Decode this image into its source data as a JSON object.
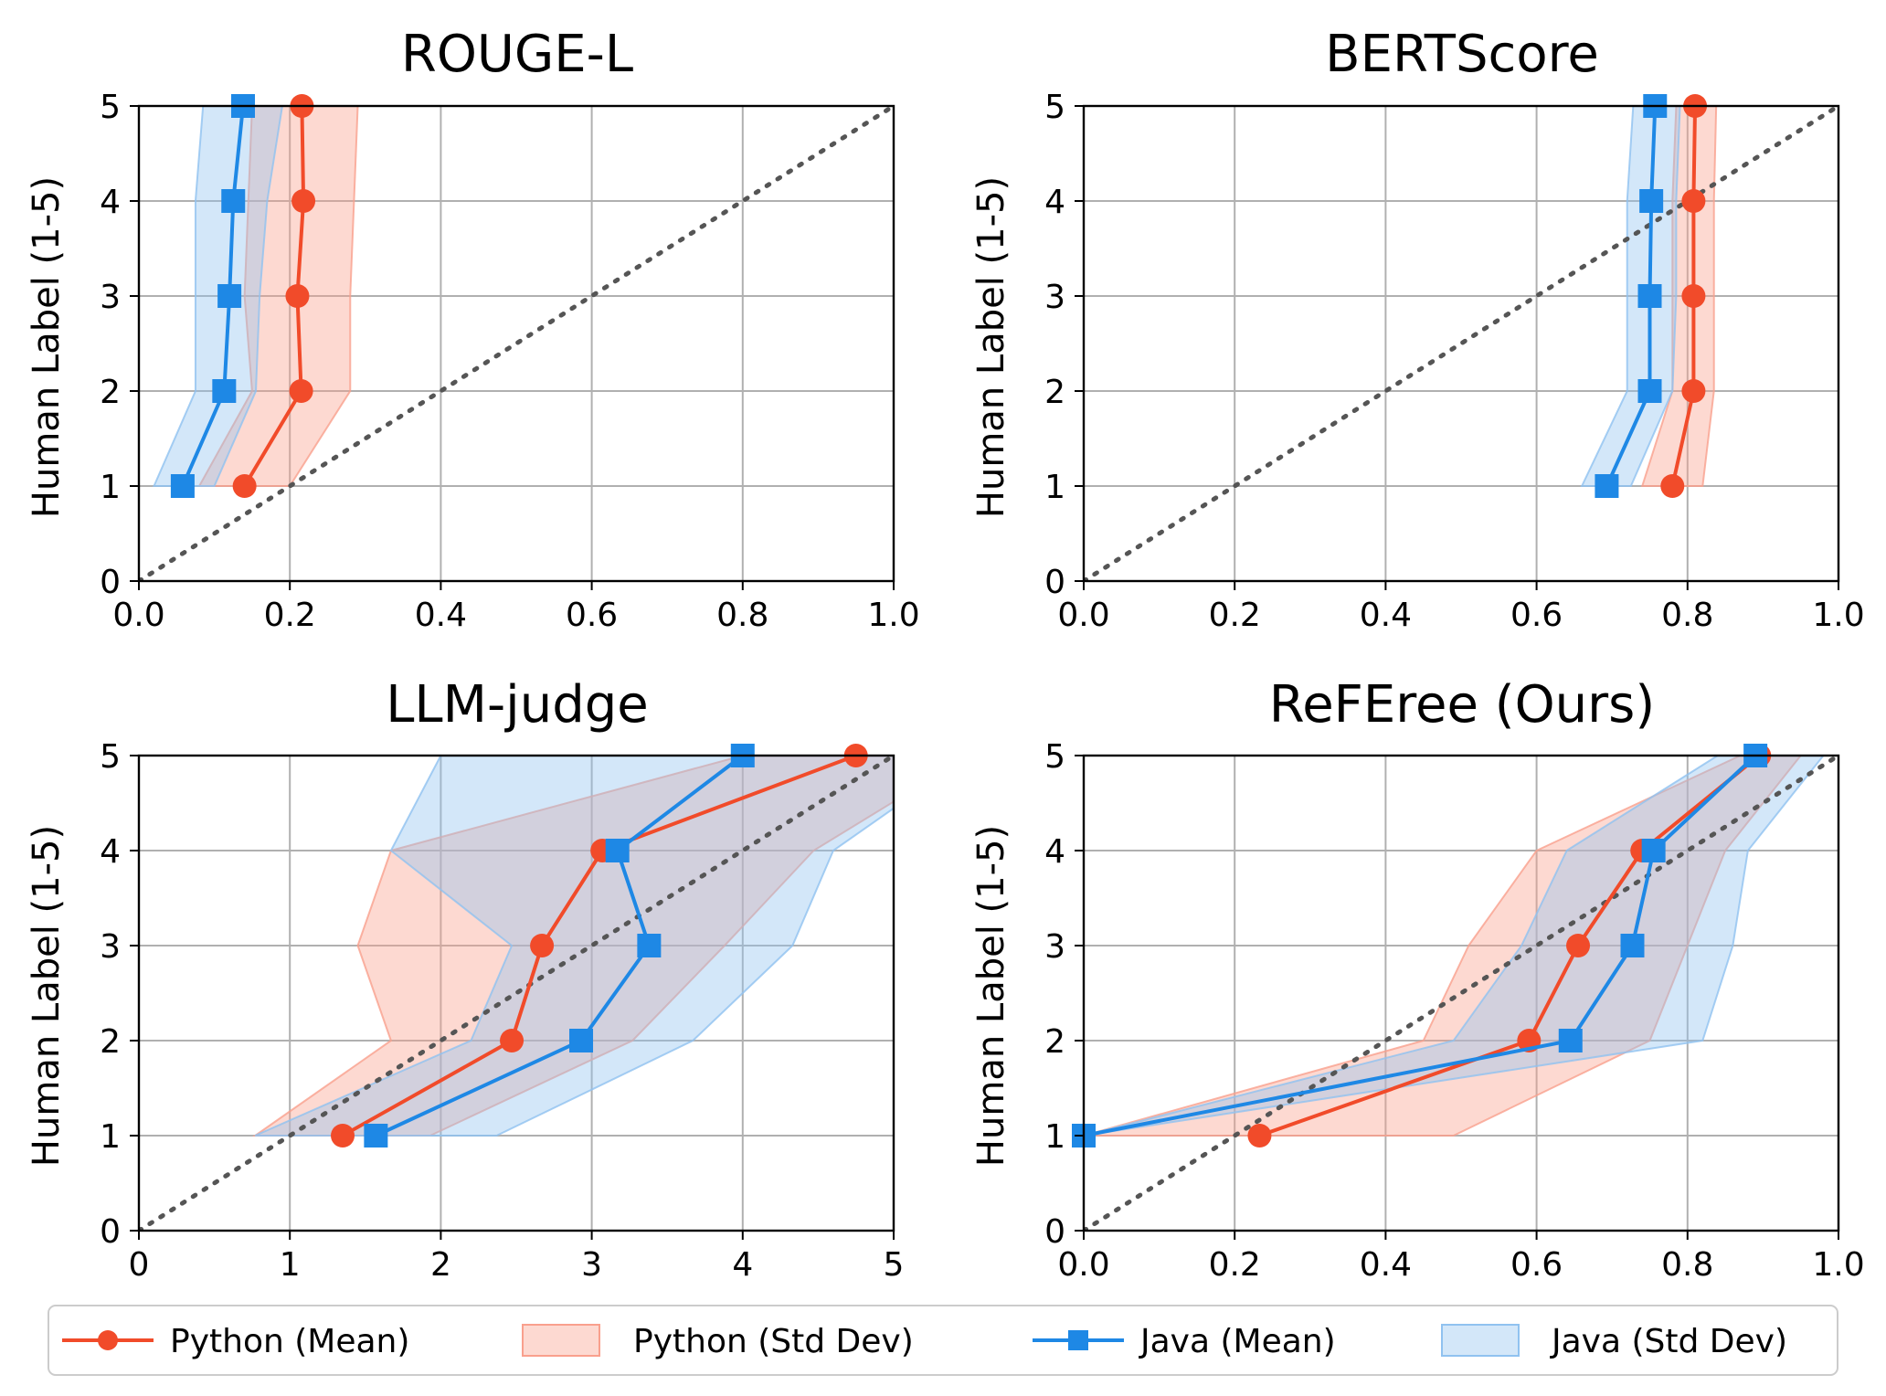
{
  "colors": {
    "python": "#f14b2a",
    "python_fill": "#f9a08d",
    "java": "#1e88e5",
    "java_fill": "#90c2f0",
    "grid": "#b0b0b0",
    "diagonal": "#555555"
  },
  "chart_data": [
    {
      "type": "line",
      "title": "ROUGE-L",
      "xlabel": "",
      "ylabel": "Human Label (1-5)",
      "xlim": [
        0.0,
        1.0
      ],
      "ylim": [
        0,
        5
      ],
      "xticks": [
        "0.0",
        "0.2",
        "0.4",
        "0.6",
        "0.8",
        "1.0"
      ],
      "xtick_values": [
        0.0,
        0.2,
        0.4,
        0.6,
        0.8,
        1.0
      ],
      "yticks": [
        "0",
        "1",
        "2",
        "3",
        "4",
        "5"
      ],
      "ytick_values": [
        0,
        1,
        2,
        3,
        4,
        5
      ],
      "grid": true,
      "diagonal": true,
      "y": [
        1,
        2,
        3,
        4,
        5
      ],
      "series": [
        {
          "name": "Python (Mean)",
          "marker": "circle",
          "x": [
            0.14,
            0.215,
            0.21,
            0.218,
            0.216
          ]
        },
        {
          "name": "Java (Mean)",
          "marker": "square",
          "x": [
            0.058,
            0.113,
            0.12,
            0.125,
            0.138
          ]
        }
      ],
      "bands": [
        {
          "name": "Python (Std Dev)",
          "low": [
            0.08,
            0.15,
            0.14,
            0.145,
            0.15
          ],
          "high": [
            0.2,
            0.28,
            0.28,
            0.285,
            0.29
          ]
        },
        {
          "name": "Java (Std Dev)",
          "low": [
            0.02,
            0.075,
            0.075,
            0.075,
            0.085
          ],
          "high": [
            0.1,
            0.155,
            0.16,
            0.17,
            0.19
          ]
        }
      ]
    },
    {
      "type": "line",
      "title": "BERTScore",
      "xlabel": "",
      "ylabel": "Human Label (1-5)",
      "xlim": [
        0.0,
        1.0
      ],
      "ylim": [
        0,
        5
      ],
      "xticks": [
        "0.0",
        "0.2",
        "0.4",
        "0.6",
        "0.8",
        "1.0"
      ],
      "xtick_values": [
        0.0,
        0.2,
        0.4,
        0.6,
        0.8,
        1.0
      ],
      "yticks": [
        "0",
        "1",
        "2",
        "3",
        "4",
        "5"
      ],
      "ytick_values": [
        0,
        1,
        2,
        3,
        4,
        5
      ],
      "grid": true,
      "diagonal": true,
      "y": [
        1,
        2,
        3,
        4,
        5
      ],
      "series": [
        {
          "name": "Python (Mean)",
          "marker": "circle",
          "x": [
            0.78,
            0.808,
            0.808,
            0.808,
            0.81
          ]
        },
        {
          "name": "Java (Mean)",
          "marker": "square",
          "x": [
            0.693,
            0.75,
            0.75,
            0.752,
            0.757
          ]
        }
      ],
      "bands": [
        {
          "name": "Python (Std Dev)",
          "low": [
            0.74,
            0.78,
            0.78,
            0.78,
            0.785
          ],
          "high": [
            0.82,
            0.835,
            0.835,
            0.835,
            0.838
          ]
        },
        {
          "name": "Java (Std Dev)",
          "low": [
            0.66,
            0.72,
            0.72,
            0.72,
            0.728
          ],
          "high": [
            0.725,
            0.78,
            0.785,
            0.785,
            0.79
          ]
        }
      ]
    },
    {
      "type": "line",
      "title": "LLM-judge",
      "xlabel": "",
      "ylabel": "Human Label (1-5)",
      "xlim": [
        0,
        5
      ],
      "ylim": [
        0,
        5
      ],
      "xticks": [
        "0",
        "1",
        "2",
        "3",
        "4",
        "5"
      ],
      "xtick_values": [
        0,
        1,
        2,
        3,
        4,
        5
      ],
      "yticks": [
        "0",
        "1",
        "2",
        "3",
        "4",
        "5"
      ],
      "ytick_values": [
        0,
        1,
        2,
        3,
        4,
        5
      ],
      "grid": true,
      "diagonal": true,
      "y": [
        1,
        2,
        3,
        4,
        5
      ],
      "series": [
        {
          "name": "Python (Mean)",
          "marker": "circle",
          "x": [
            1.35,
            2.47,
            2.67,
            3.07,
            4.75
          ]
        },
        {
          "name": "Java (Mean)",
          "marker": "square",
          "x": [
            1.57,
            2.93,
            3.38,
            3.17,
            4.0
          ]
        }
      ],
      "bands": [
        {
          "name": "Python (Std Dev)",
          "low": [
            0.77,
            1.67,
            1.45,
            1.67,
            4.0
          ],
          "high": [
            1.93,
            3.27,
            3.88,
            4.47,
            5.5
          ]
        },
        {
          "name": "Java (Std Dev)",
          "low": [
            0.77,
            2.2,
            2.47,
            1.67,
            2.0
          ],
          "high": [
            2.37,
            3.67,
            4.33,
            4.6,
            5.5
          ]
        }
      ]
    },
    {
      "type": "line",
      "title": "ReFEree (Ours)",
      "xlabel": "",
      "ylabel": "Human Label (1-5)",
      "xlim": [
        0.0,
        1.0
      ],
      "ylim": [
        0,
        5
      ],
      "xticks": [
        "0.0",
        "0.2",
        "0.4",
        "0.6",
        "0.8",
        "1.0"
      ],
      "xtick_values": [
        0.0,
        0.2,
        0.4,
        0.6,
        0.8,
        1.0
      ],
      "yticks": [
        "0",
        "1",
        "2",
        "3",
        "4",
        "5"
      ],
      "ytick_values": [
        0,
        1,
        2,
        3,
        4,
        5
      ],
      "grid": true,
      "diagonal": true,
      "y": [
        1,
        2,
        3,
        4,
        5
      ],
      "series": [
        {
          "name": "Python (Mean)",
          "marker": "circle",
          "x": [
            0.233,
            0.59,
            0.655,
            0.74,
            0.895
          ]
        },
        {
          "name": "Java (Mean)",
          "marker": "square",
          "x": [
            0.0,
            0.645,
            0.727,
            0.755,
            0.89
          ]
        }
      ],
      "bands": [
        {
          "name": "Python (Std Dev)",
          "low": [
            0.0,
            0.45,
            0.51,
            0.6,
            0.87
          ],
          "high": [
            0.49,
            0.75,
            0.8,
            0.85,
            0.95
          ]
        },
        {
          "name": "Java (Std Dev)",
          "low": [
            0.0,
            0.49,
            0.58,
            0.64,
            0.84
          ],
          "high": [
            0.0,
            0.82,
            0.86,
            0.88,
            0.98
          ]
        }
      ]
    }
  ],
  "legend": {
    "placement": "bottom",
    "items": [
      {
        "label": "Python (Mean)",
        "kind": "line-circle"
      },
      {
        "label": "Python (Std Dev)",
        "kind": "patch-python"
      },
      {
        "label": "Java (Mean)",
        "kind": "line-square"
      },
      {
        "label": "Java (Std Dev)",
        "kind": "patch-java"
      }
    ]
  }
}
